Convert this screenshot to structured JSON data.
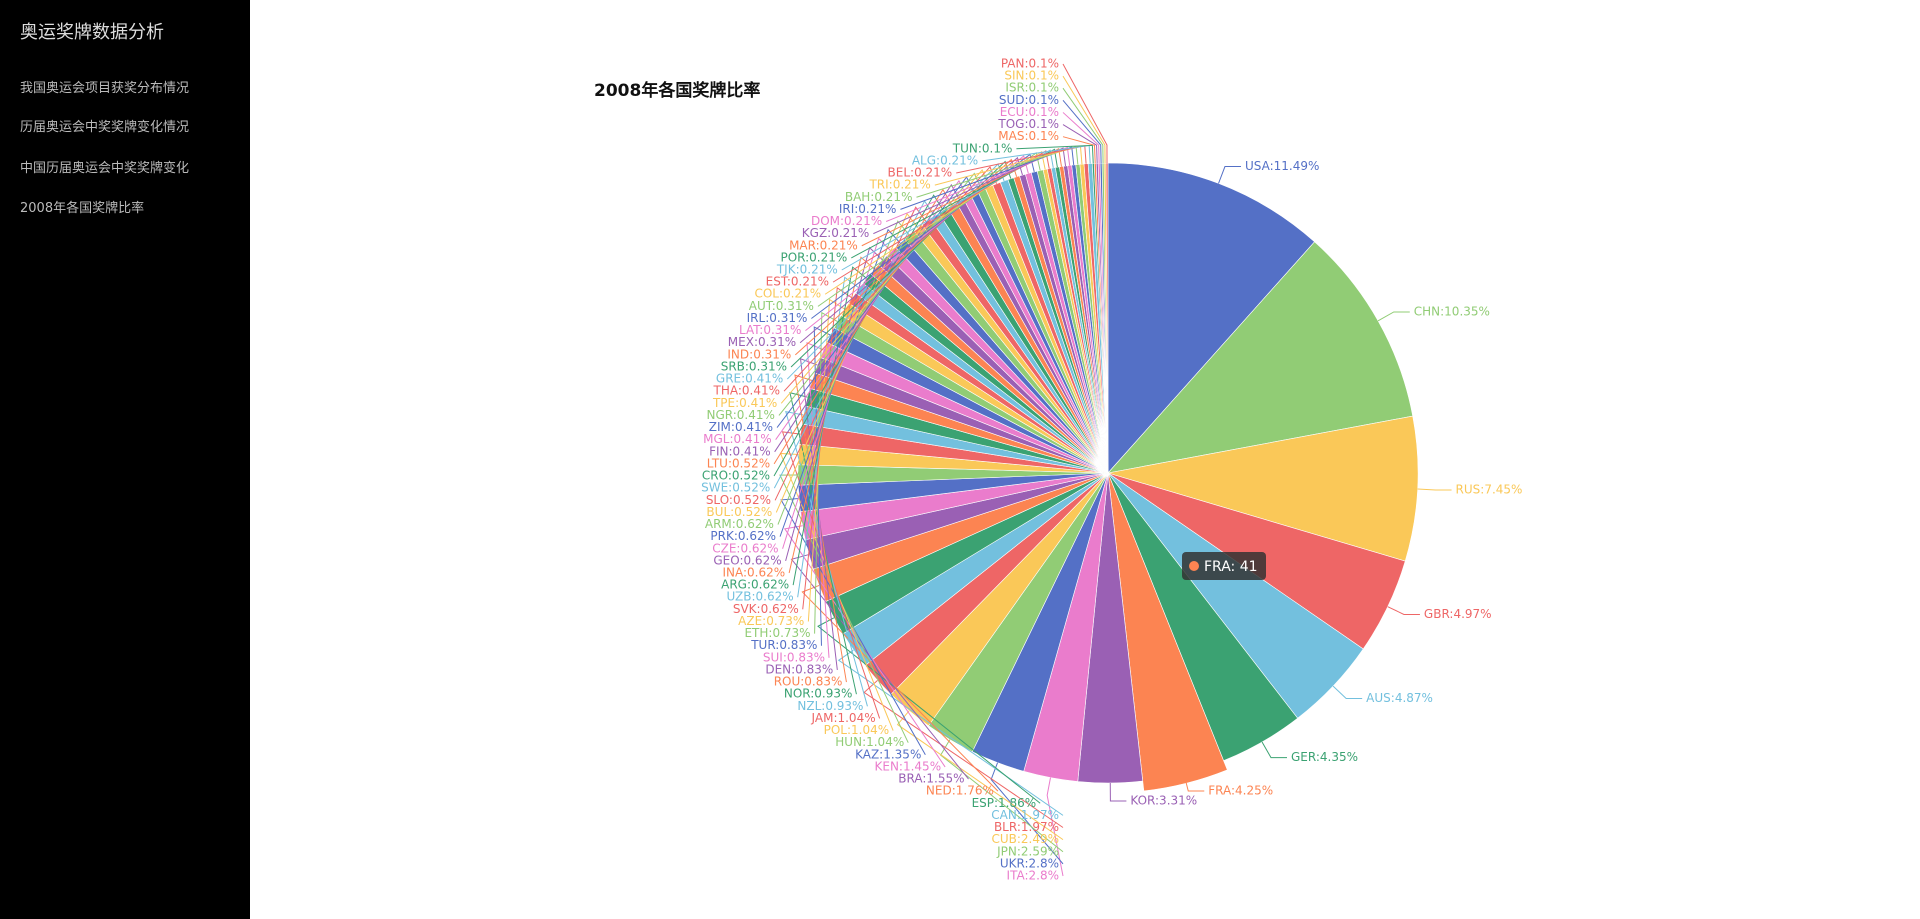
{
  "sidebar": {
    "title": "奥运奖牌数据分析",
    "menu": [
      "我国奥运会项目获奖分布情况",
      "历届奥运会中奖奖牌变化情况",
      "中国历届奥运会中奖奖牌变化",
      "2008年各国奖牌比率"
    ]
  },
  "chart_data": {
    "type": "pie",
    "title": "2008年各国奖牌比率",
    "colors": [
      "#5470c6",
      "#91cc75",
      "#fac858",
      "#ee6666",
      "#73c0de",
      "#3ba272",
      "#fc8452",
      "#9a60b4",
      "#ea7ccc"
    ],
    "categories": [
      "USA",
      "CHN",
      "RUS",
      "GBR",
      "AUS",
      "GER",
      "FRA",
      "KOR",
      "ITA",
      "UKR",
      "JPN",
      "CUB",
      "BLR",
      "CAN",
      "ESP",
      "NED",
      "BRA",
      "KEN",
      "KAZ",
      "HUN",
      "POL",
      "JAM",
      "NZL",
      "NOR",
      "ROU",
      "DEN",
      "SUI",
      "TUR",
      "ETH",
      "AZE",
      "SVK",
      "UZB",
      "ARG",
      "INA",
      "GEO",
      "CZE",
      "PRK",
      "ARM",
      "BUL",
      "SLO",
      "SWE",
      "CRO",
      "LTU",
      "FIN",
      "MGL",
      "ZIM",
      "NGR",
      "TPE",
      "THA",
      "GRE",
      "SRB",
      "IND",
      "MEX",
      "LAT",
      "IRL",
      "AUT",
      "COL",
      "EST",
      "TJK",
      "POR",
      "MAR",
      "KGZ",
      "DOM",
      "IRI",
      "BAH",
      "TRI",
      "BEL",
      "ALG",
      "TUN",
      "MAS",
      "TOG",
      "ECU",
      "SUD",
      "ISR",
      "SIN",
      "PAN"
    ],
    "values": [
      11.49,
      10.35,
      7.45,
      4.97,
      4.87,
      4.35,
      4.25,
      3.31,
      2.8,
      2.8,
      2.59,
      2.49,
      1.97,
      1.97,
      1.86,
      1.76,
      1.55,
      1.45,
      1.35,
      1.04,
      1.04,
      1.04,
      0.93,
      0.93,
      0.83,
      0.83,
      0.83,
      0.83,
      0.73,
      0.73,
      0.62,
      0.62,
      0.62,
      0.62,
      0.62,
      0.62,
      0.62,
      0.62,
      0.52,
      0.52,
      0.52,
      0.52,
      0.52,
      0.41,
      0.41,
      0.41,
      0.41,
      0.41,
      0.41,
      0.41,
      0.31,
      0.31,
      0.31,
      0.31,
      0.31,
      0.31,
      0.21,
      0.21,
      0.21,
      0.21,
      0.21,
      0.21,
      0.21,
      0.21,
      0.21,
      0.21,
      0.21,
      0.21,
      0.1,
      0.1,
      0.1,
      0.1,
      0.1,
      0.1,
      0.1,
      0.1
    ],
    "value_labels": [
      "USA:11.49%",
      "CHN:10.35%",
      "RUS:7.45%",
      "GBR:4.97%",
      "AUS:4.87%",
      "GER:4.35%",
      "FRA:4.25%",
      "KOR:3.31%",
      "ITA:2.8%",
      "UKR:2.8%",
      "JPN:2.59%",
      "CUB:2.49%",
      "BLR:1.97%",
      "CAN:1.97%",
      "ESP:1.86%",
      "NED:1.76%",
      "BRA:1.55%",
      "KEN:1.45%",
      "KAZ:1.35%",
      "HUN:1.04%",
      "POL:1.04%",
      "JAM:1.04%",
      "NZL:0.93%",
      "NOR:0.93%",
      "ROU:0.83%",
      "DEN:0.83%",
      "SUI:0.83%",
      "TUR:0.83%",
      "ETH:0.73%",
      "AZE:0.73%",
      "SVK:0.62%",
      "UZB:0.62%",
      "ARG:0.62%",
      "INA:0.62%",
      "GEO:0.62%",
      "CZE:0.62%",
      "PRK:0.62%",
      "ARM:0.62%",
      "BUL:0.52%",
      "SLO:0.52%",
      "SWE:0.52%",
      "CRO:0.52%",
      "LTU:0.52%",
      "FIN:0.41%",
      "MGL:0.41%",
      "ZIM:0.41%",
      "NGR:0.41%",
      "TPE:0.41%",
      "THA:0.41%",
      "GRE:0.41%",
      "SRB:0.31%",
      "IND:0.31%",
      "MEX:0.31%",
      "LAT:0.31%",
      "IRL:0.31%",
      "AUT:0.31%",
      "COL:0.21%",
      "EST:0.21%",
      "TJK:0.21%",
      "POR:0.21%",
      "MAR:0.21%",
      "KGZ:0.21%",
      "DOM:0.21%",
      "IRI:0.21%",
      "BAH:0.21%",
      "TRI:0.21%",
      "BEL:0.21%",
      "ALG:0.21%",
      "TUN:0.1%",
      "MAS:0.1%",
      "TOG:0.1%",
      "ECU:0.1%",
      "SUD:0.1%",
      "ISR:0.1%",
      "SIN:0.1%",
      "PAN:0.1%"
    ],
    "tooltip": "FRA: 41"
  }
}
